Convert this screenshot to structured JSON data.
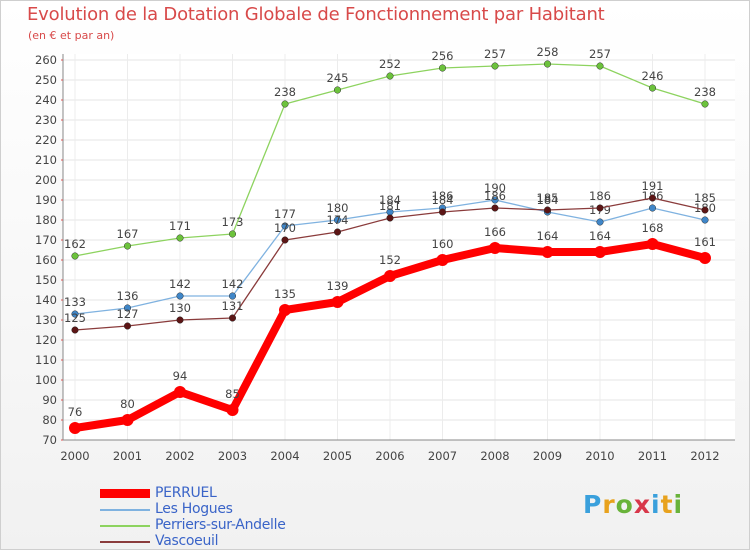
{
  "title": "Evolution de la Dotation Globale de Fonctionnement par Habitant",
  "subtitle": "(en € et par an)",
  "logo": {
    "text": "Proxiti",
    "colors": [
      "#3aa0dc",
      "#e8a21d",
      "#69b33a",
      "#d8374a",
      "#3aa0dc",
      "#e8a21d",
      "#69b33a"
    ]
  },
  "chart_data": {
    "type": "line",
    "title": "Evolution de la Dotation Globale de Fonctionnement par Habitant",
    "subtitle": "(en € et par an)",
    "xlabel": "",
    "ylabel": "",
    "ylim": [
      70,
      260
    ],
    "ytick_step": 10,
    "grid": true,
    "categories": [
      "2000",
      "2001",
      "2002",
      "2003",
      "2004",
      "2005",
      "2006",
      "2007",
      "2008",
      "2009",
      "2010",
      "2011",
      "2012"
    ],
    "series": [
      {
        "name": "Perriers-sur-Andelle",
        "color": "#8dd35f",
        "marker": "#6cc23c",
        "values": [
          162,
          167,
          171,
          173,
          238,
          245,
          252,
          256,
          257,
          258,
          257,
          246,
          238
        ]
      },
      {
        "name": "Les Hogues",
        "color": "#7fb2e0",
        "marker": "#3f86c8",
        "values": [
          133,
          136,
          142,
          142,
          177,
          180,
          184,
          186,
          190,
          184,
          179,
          186,
          180
        ]
      },
      {
        "name": "Vascoeuil",
        "color": "#8a3b3b",
        "marker": "#5c1515",
        "values": [
          125,
          127,
          130,
          131,
          170,
          174,
          181,
          184,
          186,
          185,
          186,
          191,
          185
        ]
      },
      {
        "name": "PERRUEL",
        "color": "#ff0000",
        "marker": "#ff0000",
        "values": [
          76,
          80,
          94,
          85,
          135,
          139,
          152,
          160,
          166,
          164,
          164,
          168,
          161
        ]
      }
    ],
    "legend": [
      "PERRUEL",
      "Les Hogues",
      "Perriers-sur-Andelle",
      "Vascoeuil"
    ],
    "legend_position": "bottom-left"
  }
}
